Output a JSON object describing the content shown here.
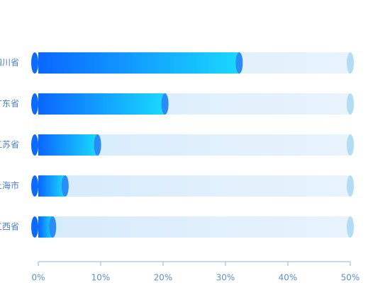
{
  "chart_data": {
    "type": "bar",
    "orientation": "horizontal",
    "categories": [
      "四川省",
      "广东省",
      "江苏省",
      "上海市",
      "江西省"
    ],
    "values": [
      32.2,
      20.3,
      9.5,
      4.3,
      2.3
    ],
    "color": "#0a6cff",
    "xlim": [
      0,
      50
    ],
    "xticks": [
      {
        "value": 0,
        "label": "0%"
      },
      {
        "value": 10,
        "label": "10%"
      },
      {
        "value": 20,
        "label": "20%"
      },
      {
        "value": 30,
        "label": "30%"
      },
      {
        "value": 40,
        "label": "40%"
      },
      {
        "value": 50,
        "label": "50%"
      }
    ]
  }
}
